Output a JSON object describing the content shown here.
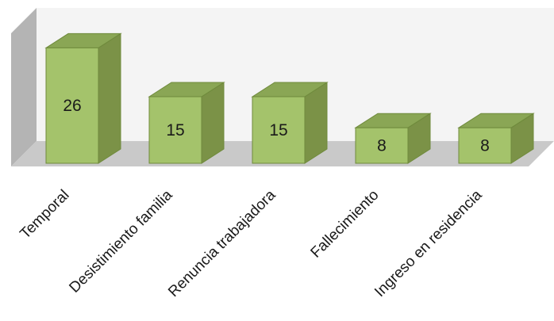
{
  "chart_data": {
    "type": "bar",
    "style": "3d-column",
    "categories": [
      "Temporal",
      "Desistimiento familia",
      "Renuncia trabajadora",
      "Fallecimiento",
      "Ingreso en residencia"
    ],
    "values": [
      26,
      15,
      15,
      8,
      8
    ],
    "data_labels": [
      "26",
      "15",
      "15",
      "8",
      "8"
    ],
    "title": "",
    "xlabel": "",
    "ylabel": "",
    "ylim": [
      0,
      30
    ],
    "grid": false,
    "legend": "none",
    "colors": {
      "bar_front": "#a4c36b",
      "bar_side": "#7b9247",
      "bar_top": "#8aa655",
      "bar_edge": "#6f8a3c",
      "back_wall": "#f4f4f4",
      "side_wall": "#b4b4b4",
      "floor": "#c9c9c9"
    }
  }
}
